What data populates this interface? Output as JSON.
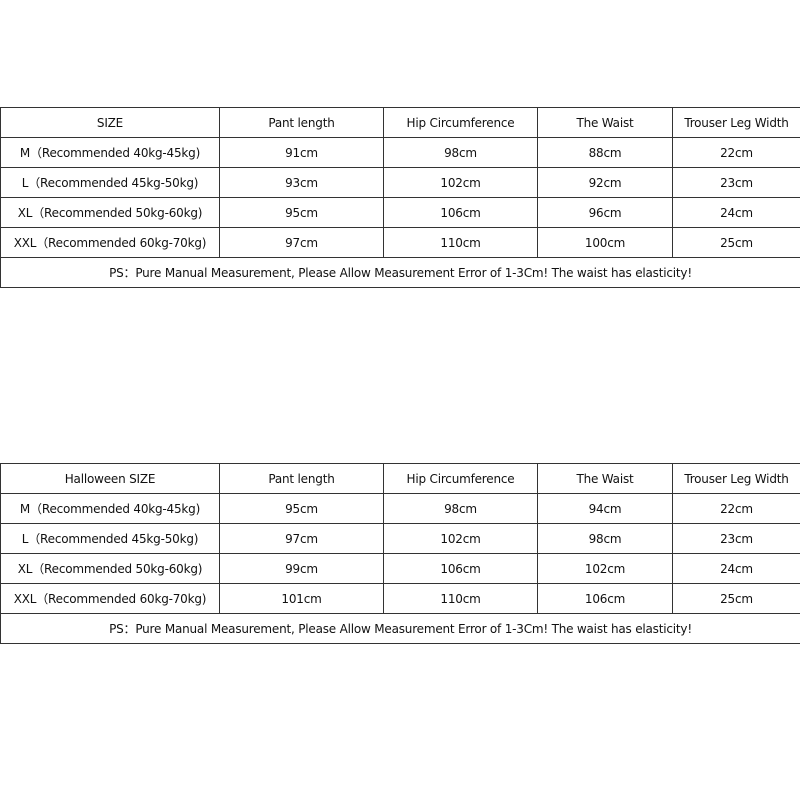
{
  "tables": [
    {
      "headers": [
        "SIZE",
        "Pant length",
        "Hip Circumference",
        "The Waist",
        "Trouser Leg Width"
      ],
      "rows": [
        [
          "M（Recommended 40kg-45kg)",
          "91cm",
          "98cm",
          "88cm",
          "22cm"
        ],
        [
          "L（Recommended 45kg-50kg)",
          "93cm",
          "102cm",
          "92cm",
          "23cm"
        ],
        [
          "XL（Recommended 50kg-60kg)",
          "95cm",
          "106cm",
          "96cm",
          "24cm"
        ],
        [
          "XXL（Recommended 60kg-70kg)",
          "97cm",
          "110cm",
          "100cm",
          "25cm"
        ]
      ],
      "note": "PS：Pure Manual Measurement, Please Allow Measurement Error of 1-3Cm! The waist has elasticity!"
    },
    {
      "headers": [
        "Halloween SIZE",
        "Pant length",
        "Hip Circumference",
        "The Waist",
        "Trouser Leg Width"
      ],
      "rows": [
        [
          "M（Recommended 40kg-45kg)",
          "95cm",
          "98cm",
          "94cm",
          "22cm"
        ],
        [
          "L（Recommended 45kg-50kg)",
          "97cm",
          "102cm",
          "98cm",
          "23cm"
        ],
        [
          "XL（Recommended 50kg-60kg)",
          "99cm",
          "106cm",
          "102cm",
          "24cm"
        ],
        [
          "XXL（Recommended 60kg-70kg)",
          "101cm",
          "110cm",
          "106cm",
          "25cm"
        ]
      ],
      "note": "PS：Pure Manual Measurement, Please Allow Measurement Error of 1-3Cm! The waist has elasticity!"
    }
  ]
}
